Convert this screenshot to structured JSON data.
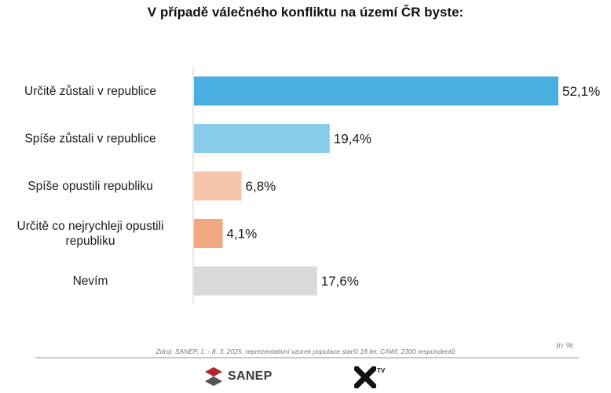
{
  "title": "V případě válečného konfliktu na území ČR byste:",
  "chart_data": {
    "type": "bar",
    "orientation": "horizontal",
    "categories": [
      [
        "Určitě zůstali v republice"
      ],
      [
        "Spíše zůstali v republice"
      ],
      [
        "Spíše opustili republiku"
      ],
      [
        "Určitě co nejrychleji opustili",
        "republiku"
      ],
      [
        "Nevím"
      ]
    ],
    "values": [
      52.1,
      19.4,
      6.8,
      4.1,
      17.6
    ],
    "value_labels": [
      "52,1%",
      "19,4%",
      "6,8%",
      "4,1%",
      "17,6%"
    ],
    "colors": [
      "#4aaee0",
      "#87cdea",
      "#f5c6ad",
      "#f0a883",
      "#d9d9d9"
    ],
    "xlim": [
      0,
      52.1
    ],
    "grid": false,
    "legend": "none"
  },
  "source": "Zdroj: SANEP, 1. - 8. 3. 2025, reprezentativní vzorek populace starší 18 let, CAWI, 2300 respondentů",
  "unit": "In %",
  "logos": {
    "sanep": {
      "text": "SANEP",
      "icon": "sanep-logo-icon"
    },
    "xtv": {
      "text": "TV",
      "icon": "x-icon"
    }
  }
}
